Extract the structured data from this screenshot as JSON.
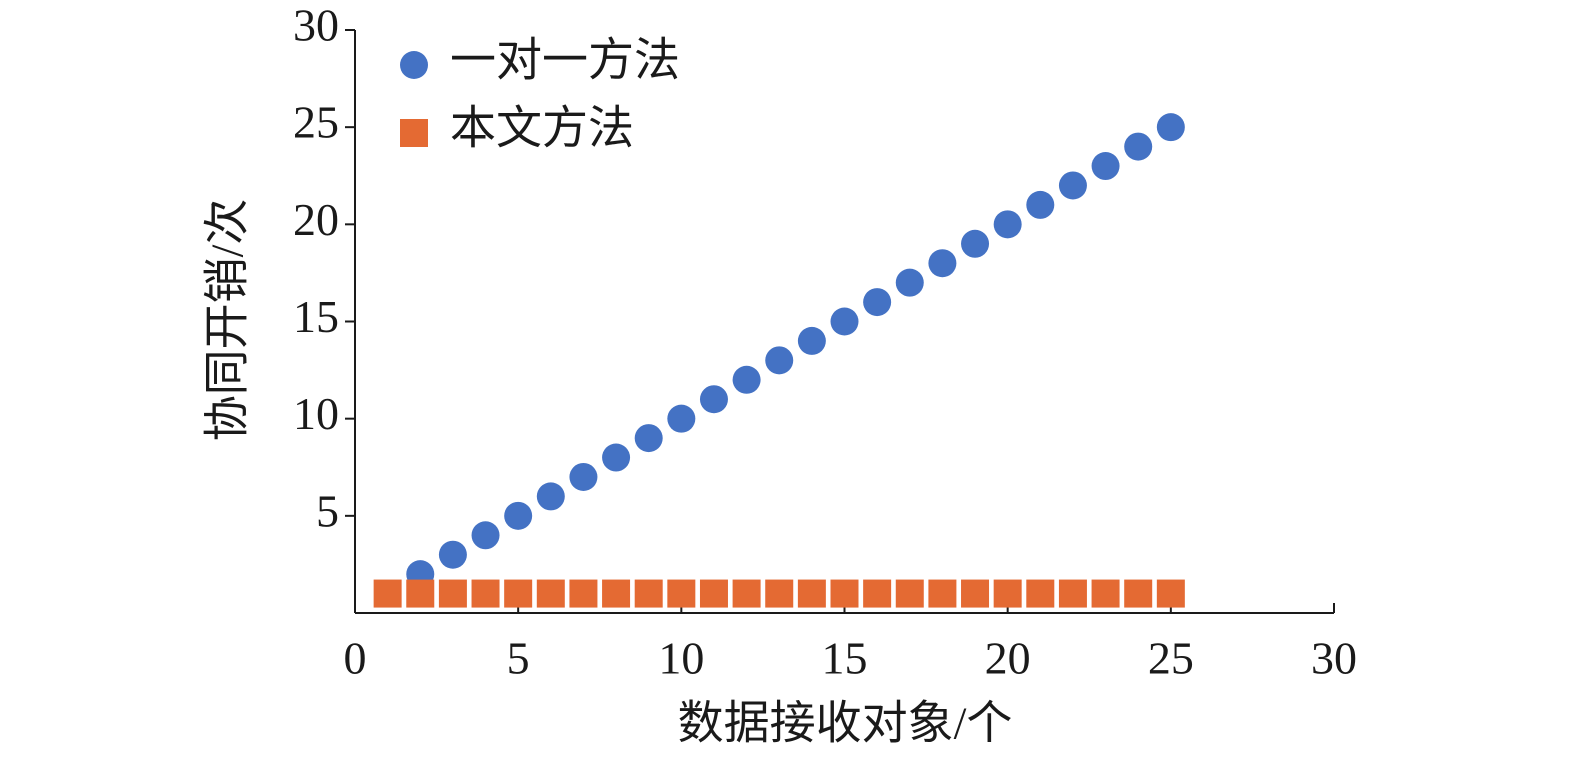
{
  "chart_data": {
    "type": "scatter",
    "xlabel": "数据接收对象/个",
    "ylabel": "协同开销/次",
    "xlim": [
      0,
      30
    ],
    "ylim": [
      0,
      30
    ],
    "xticks": [
      0,
      5,
      10,
      15,
      20,
      25,
      30
    ],
    "yticks": [
      5,
      10,
      15,
      20,
      25,
      30
    ],
    "series": [
      {
        "name": "一对一方法",
        "color": "#4472c4",
        "marker": "circle",
        "x": [
          2,
          3,
          4,
          5,
          6,
          7,
          8,
          9,
          10,
          11,
          12,
          13,
          14,
          15,
          16,
          17,
          18,
          19,
          20,
          21,
          22,
          23,
          24,
          25
        ],
        "values": [
          2,
          3,
          4,
          5,
          6,
          7,
          8,
          9,
          10,
          11,
          12,
          13,
          14,
          15,
          16,
          17,
          18,
          19,
          20,
          21,
          22,
          23,
          24,
          25
        ]
      },
      {
        "name": "本文方法",
        "color": "#e46a33",
        "marker": "square",
        "x": [
          1,
          2,
          3,
          4,
          5,
          6,
          7,
          8,
          9,
          10,
          11,
          12,
          13,
          14,
          15,
          16,
          17,
          18,
          19,
          20,
          21,
          22,
          23,
          24,
          25
        ],
        "values": [
          1,
          1,
          1,
          1,
          1,
          1,
          1,
          1,
          1,
          1,
          1,
          1,
          1,
          1,
          1,
          1,
          1,
          1,
          1,
          1,
          1,
          1,
          1,
          1,
          1
        ]
      }
    ]
  }
}
